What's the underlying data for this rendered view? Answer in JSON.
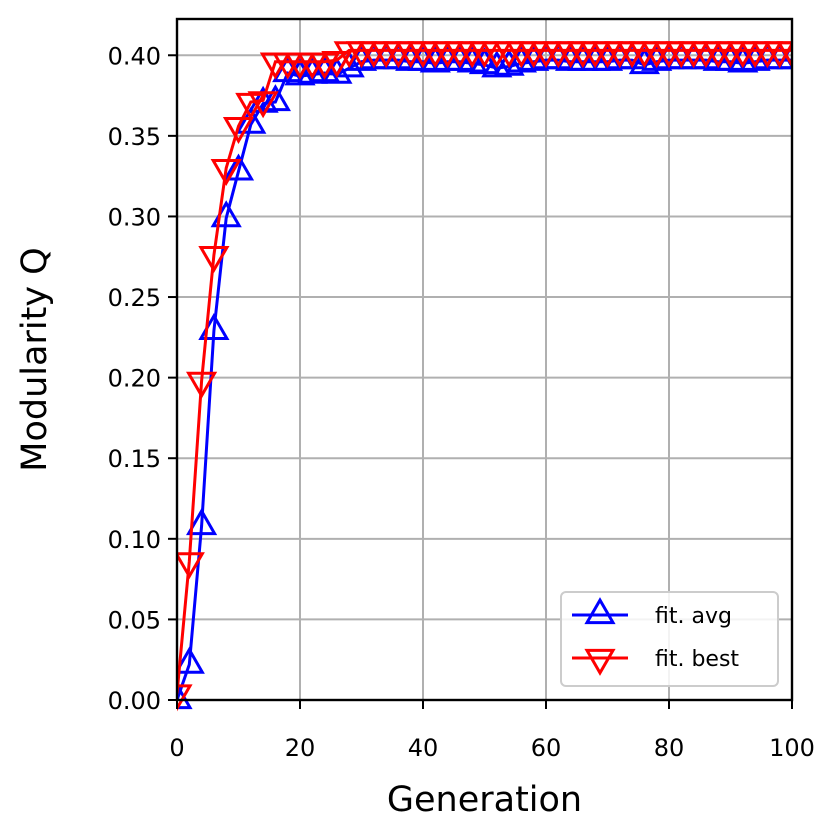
{
  "chart_data": {
    "type": "line",
    "title": "",
    "xlabel": "Generation",
    "ylabel": "Modularity Q",
    "xlim": [
      0,
      100
    ],
    "ylim": [
      0,
      0.4225
    ],
    "xticks": [
      0,
      20,
      40,
      60,
      80,
      100
    ],
    "xtick_labels": [
      "0",
      "20",
      "40",
      "60",
      "80",
      "100"
    ],
    "yticks": [
      0,
      0.05,
      0.1,
      0.15,
      0.2,
      0.25,
      0.3,
      0.35,
      0.4
    ],
    "ytick_labels": [
      "0.00",
      "0.05",
      "0.10",
      "0.15",
      "0.20",
      "0.25",
      "0.30",
      "0.35",
      "0.40"
    ],
    "grid": true,
    "legend_position": "lower-right",
    "series": [
      {
        "name": "fit. avg",
        "color": "#0000ff",
        "marker": "triangle-up",
        "x": [
          0,
          2,
          4,
          6,
          8,
          10,
          12,
          14,
          16,
          18,
          20,
          22,
          24,
          26,
          28,
          30,
          32,
          34,
          36,
          38,
          40,
          42,
          44,
          46,
          48,
          50,
          52,
          54,
          56,
          58,
          60,
          62,
          64,
          66,
          68,
          70,
          72,
          74,
          76,
          78,
          80,
          82,
          84,
          86,
          88,
          90,
          92,
          94,
          96,
          98,
          100
        ],
        "values": [
          0.0,
          0.022,
          0.108,
          0.229,
          0.299,
          0.328,
          0.357,
          0.37,
          0.371,
          0.389,
          0.387,
          0.388,
          0.389,
          0.388,
          0.392,
          0.396,
          0.397,
          0.397,
          0.397,
          0.396,
          0.396,
          0.395,
          0.396,
          0.396,
          0.395,
          0.394,
          0.392,
          0.393,
          0.395,
          0.396,
          0.397,
          0.397,
          0.396,
          0.396,
          0.396,
          0.396,
          0.397,
          0.397,
          0.394,
          0.396,
          0.397,
          0.397,
          0.397,
          0.397,
          0.396,
          0.396,
          0.395,
          0.396,
          0.397,
          0.397,
          0.397
        ]
      },
      {
        "name": "fit. best",
        "color": "#ff0000",
        "marker": "triangle-down",
        "x": [
          0,
          2,
          4,
          6,
          8,
          10,
          12,
          14,
          16,
          18,
          20,
          22,
          24,
          26,
          28,
          30,
          32,
          34,
          36,
          38,
          40,
          42,
          44,
          46,
          48,
          50,
          52,
          54,
          56,
          58,
          60,
          62,
          64,
          66,
          68,
          70,
          72,
          74,
          76,
          78,
          80,
          82,
          84,
          86,
          88,
          90,
          92,
          94,
          96,
          98,
          100
        ],
        "values": [
          0.004,
          0.086,
          0.198,
          0.276,
          0.33,
          0.356,
          0.371,
          0.372,
          0.396,
          0.396,
          0.396,
          0.396,
          0.396,
          0.397,
          0.403,
          0.403,
          0.403,
          0.403,
          0.403,
          0.403,
          0.403,
          0.403,
          0.403,
          0.403,
          0.403,
          0.403,
          0.403,
          0.403,
          0.403,
          0.403,
          0.403,
          0.403,
          0.403,
          0.403,
          0.403,
          0.403,
          0.403,
          0.403,
          0.403,
          0.403,
          0.403,
          0.403,
          0.403,
          0.403,
          0.403,
          0.403,
          0.403,
          0.403,
          0.403,
          0.403,
          0.403
        ]
      }
    ]
  }
}
